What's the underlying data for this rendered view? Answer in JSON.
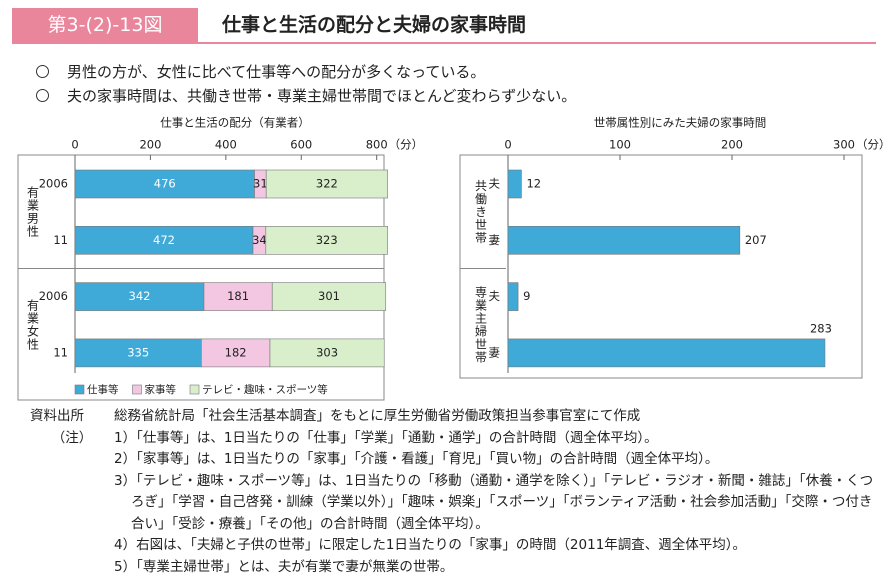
{
  "header": {
    "label": "第3-(2)-13図",
    "title": "仕事と生活の配分と夫婦の家事時間"
  },
  "bullets": [
    "男性の方が、女性に比べて仕事等への配分が多くなっている。",
    "夫の家事時間は、共働き世帯・専業主婦世帯間でほとんど変わらず少ない。"
  ],
  "chart_data": [
    {
      "type": "bar",
      "orientation": "horizontal",
      "stacked": true,
      "title": "仕事と生活の配分（有業者）",
      "categories": [
        "2006",
        "11",
        "2006",
        "11"
      ],
      "groups": [
        "有業男性",
        "有業女性"
      ],
      "series": [
        {
          "name": "仕事等",
          "color": "#3fa9d8",
          "values": [
            476,
            472,
            342,
            335
          ]
        },
        {
          "name": "家事等",
          "color": "#f3c6e2",
          "values": [
            31,
            34,
            181,
            182
          ]
        },
        {
          "name": "テレビ・趣味・スポーツ等",
          "color": "#d9eecb",
          "values": [
            322,
            323,
            301,
            303
          ]
        }
      ],
      "xlim": [
        0,
        830
      ],
      "xticks": [
        0,
        200,
        400,
        600,
        800
      ],
      "x_unit": "（分）",
      "legend": "bottom-left"
    },
    {
      "type": "bar",
      "orientation": "horizontal",
      "title": "世帯属性別にみた夫婦の家事時間",
      "categories": [
        "夫",
        "妻",
        "夫",
        "妻"
      ],
      "groups": [
        "共働き世帯",
        "専業主婦世帯"
      ],
      "values": [
        12,
        207,
        9,
        283
      ],
      "color": "#3fa9d8",
      "xlim": [
        0,
        300
      ],
      "xticks": [
        0,
        100,
        200,
        300
      ],
      "x_unit": "（分）"
    }
  ],
  "source": {
    "label": "資料出所",
    "text": "総務省統計局「社会生活基本調査」をもとに厚生労働省労働政策担当参事官室にて作成"
  },
  "notes": {
    "label": "（注）",
    "items": [
      "1）「仕事等」は、1日当たりの「仕事」「学業」「通勤・通学」の合計時間（週全体平均）。",
      "2）「家事等」は、1日当たりの「家事」「介護・看護」「育児」「買い物」の合計時間（週全体平均）。",
      "3）「テレビ・趣味・スポーツ等」は、1日当たりの「移動（通勤・通学を除く）」「テレビ・ラジオ・新聞・雑誌」「休養・くつろぎ」「学習・自己啓発・訓練（学業以外）」「趣味・娯楽」「スポーツ」「ボランティア活動・社会参加活動」「交際・つ付き合い」「受診・療養」「その他」の合計時間（週全体平均）。",
      "4）右図は、「夫婦と子供の世帯」に限定した1日当たりの「家事」の時間（2011年調査、週全体平均）。",
      "5）「専業主婦世帯」とは、夫が有業で妻が無業の世帯。"
    ]
  }
}
